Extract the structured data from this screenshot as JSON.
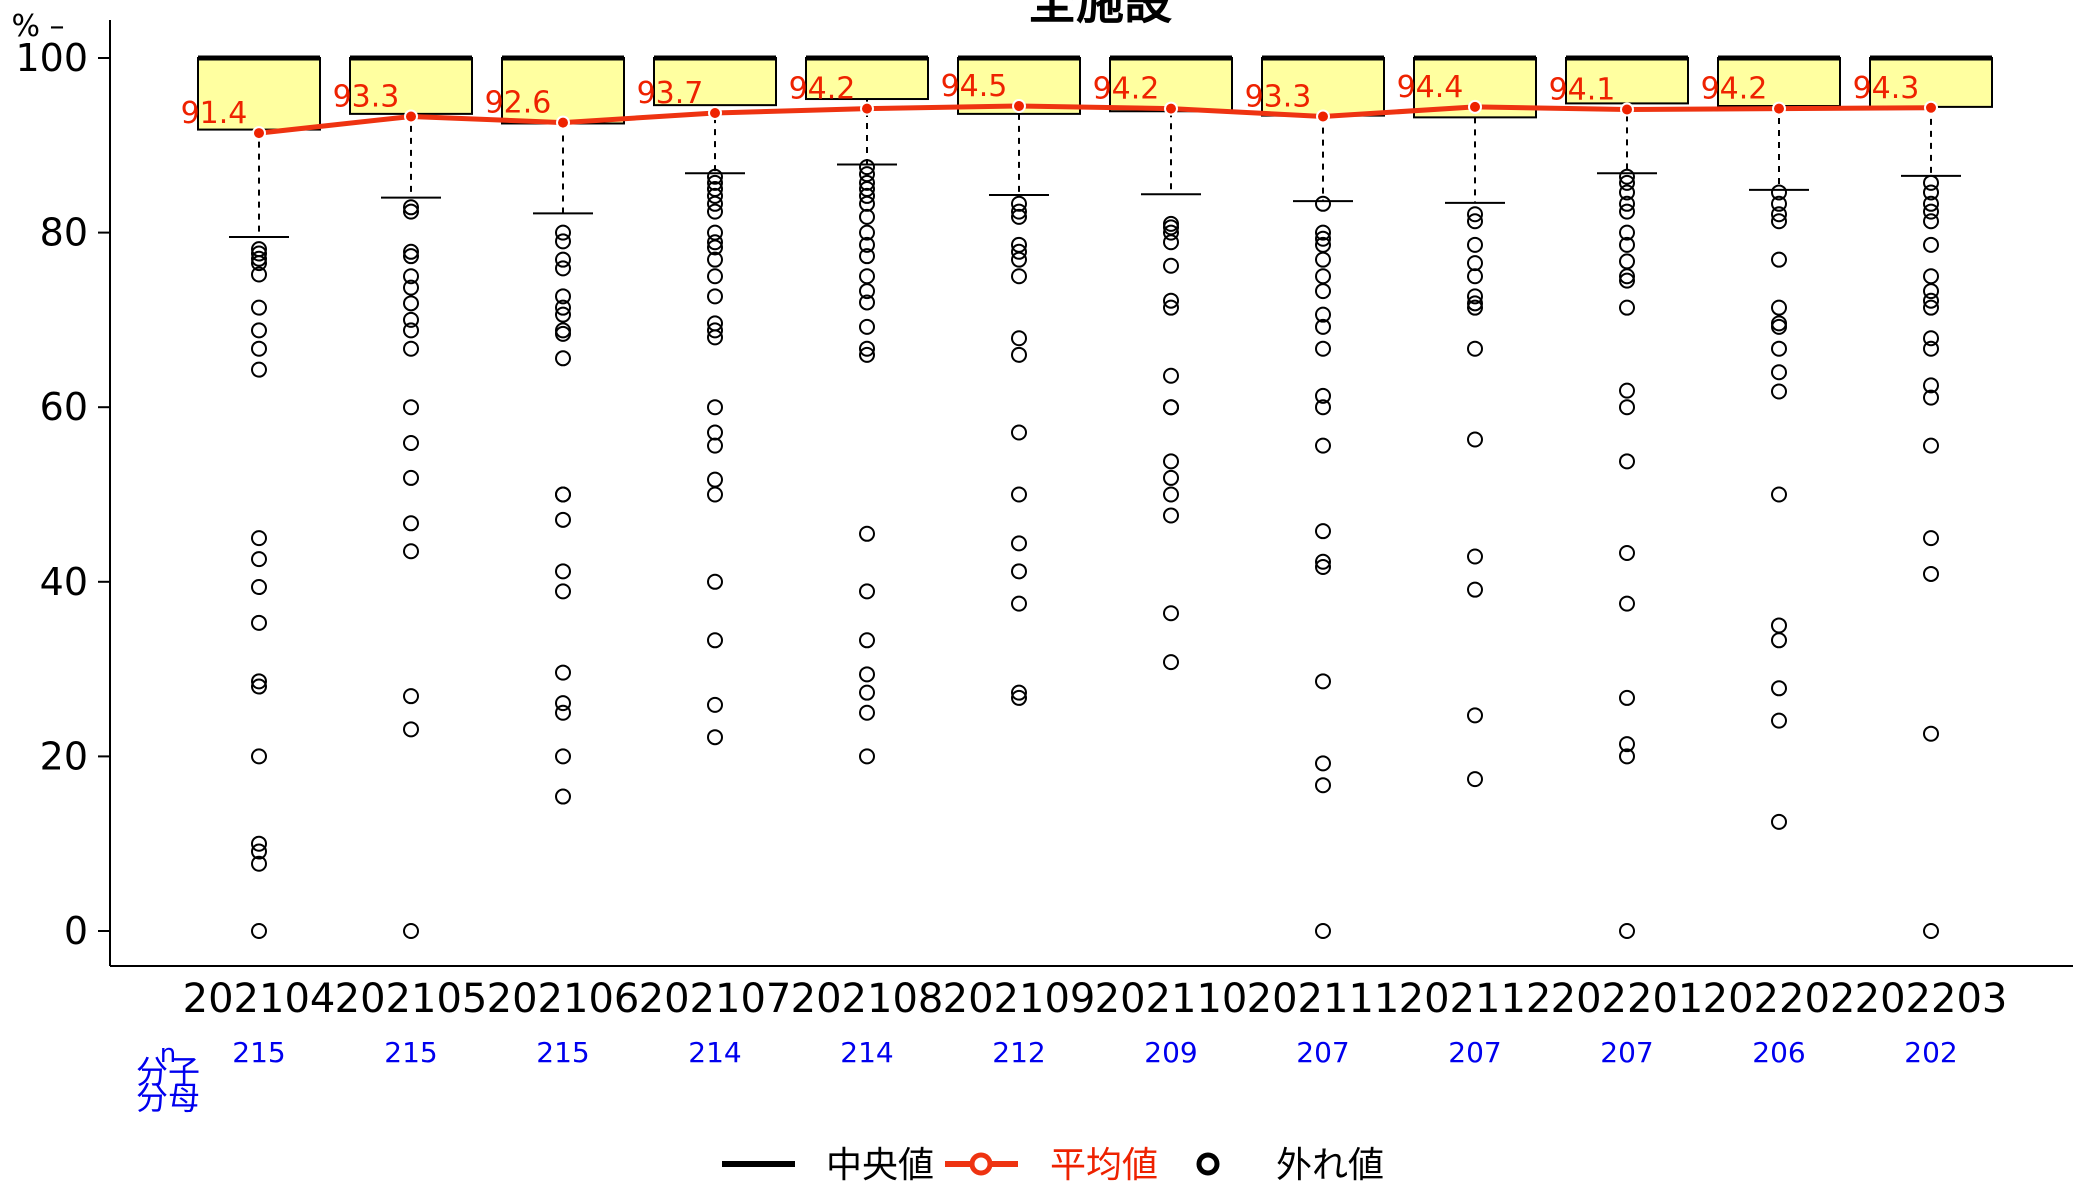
{
  "chart_data": {
    "type": "boxplot",
    "title": "全施設",
    "ylabel": "% –",
    "ylim": [
      0,
      100
    ],
    "yticks": [
      0,
      20,
      40,
      60,
      80,
      100
    ],
    "grid": false,
    "categories": [
      "202104",
      "202105",
      "202106",
      "202107",
      "202108",
      "202109",
      "202110",
      "202111",
      "202112",
      "202201",
      "202202",
      "202203"
    ],
    "n": [
      "215",
      "215",
      "215",
      "214",
      "214",
      "212",
      "209",
      "207",
      "207",
      "207",
      "206",
      "202"
    ],
    "n_side_label": {
      "n": "n",
      "numerator": "分子",
      "denominator": "分母"
    },
    "mean": [
      91.4,
      93.3,
      92.6,
      93.7,
      94.2,
      94.5,
      94.2,
      93.3,
      94.4,
      94.1,
      94.2,
      94.3
    ],
    "mean_labels": [
      "91.4",
      "93.3",
      "92.6",
      "93.7",
      "94.2",
      "94.5",
      "94.2",
      "93.3",
      "94.4",
      "94.1",
      "94.2",
      "94.3"
    ],
    "median": [
      100,
      100,
      100,
      100,
      100,
      100,
      100,
      100,
      100,
      100,
      100,
      100
    ],
    "q1": [
      91.8,
      93.6,
      92.5,
      94.6,
      95.3,
      93.6,
      93.9,
      93.4,
      93.2,
      94.8,
      94.5,
      94.4
    ],
    "q3": [
      100,
      100,
      100,
      100,
      100,
      100,
      100,
      100,
      100,
      100,
      100,
      100
    ],
    "whisker_low": [
      79.5,
      84.0,
      82.2,
      86.8,
      87.8,
      84.3,
      84.4,
      83.6,
      83.4,
      86.8,
      84.9,
      86.5
    ],
    "whisker_high": [
      100,
      100,
      100,
      100,
      100,
      100,
      100,
      100,
      100,
      100,
      100,
      100
    ],
    "outliers": [
      [
        78.1,
        77.6,
        77.0,
        76.5,
        75.2,
        71.4,
        68.8,
        66.7,
        64.3,
        45.0,
        42.6,
        39.4,
        35.3,
        28.6,
        28.0,
        20.0,
        10.0,
        9.1,
        7.7,
        0
      ],
      [
        82.9,
        82.4,
        77.8,
        77.3,
        75.0,
        73.7,
        71.9,
        70.0,
        68.8,
        66.7,
        60.0,
        55.9,
        51.9,
        46.7,
        43.5,
        26.9,
        23.1,
        0
      ],
      [
        80.0,
        79.0,
        76.9,
        75.9,
        72.7,
        71.4,
        70.6,
        68.8,
        68.4,
        65.6,
        50.0,
        50.0,
        47.1,
        41.2,
        38.9,
        29.6,
        26.1,
        25.0,
        20.0,
        15.4
      ],
      [
        86.4,
        85.7,
        85.0,
        84.2,
        83.3,
        82.4,
        80.0,
        78.9,
        78.3,
        76.9,
        75.0,
        72.7,
        69.6,
        68.8,
        68.0,
        60.0,
        57.1,
        55.6,
        51.7,
        50.0,
        40.0,
        33.3,
        25.9,
        22.2
      ],
      [
        87.5,
        86.7,
        85.7,
        85.0,
        84.2,
        83.3,
        81.8,
        80.0,
        78.6,
        77.3,
        75.0,
        73.3,
        72.0,
        69.2,
        66.7,
        66.0,
        45.5,
        38.9,
        33.3,
        29.4,
        27.3,
        25.0,
        20.0
      ],
      [
        83.3,
        82.4,
        81.8,
        78.6,
        77.8,
        76.9,
        75.0,
        67.9,
        66.0,
        57.1,
        50.0,
        44.4,
        41.2,
        37.5,
        27.3,
        26.7
      ],
      [
        81.0,
        80.6,
        80.0,
        78.9,
        76.2,
        72.2,
        71.4,
        63.6,
        60.0,
        60.0,
        53.8,
        51.9,
        50.0,
        47.6,
        36.4,
        30.8
      ],
      [
        83.3,
        80.0,
        79.3,
        78.6,
        76.9,
        75.0,
        73.3,
        70.6,
        69.2,
        66.7,
        61.3,
        60.0,
        55.6,
        45.8,
        42.3,
        41.7,
        28.6,
        19.2,
        16.7,
        0
      ],
      [
        82.1,
        81.3,
        78.6,
        76.5,
        75.0,
        72.7,
        71.9,
        71.4,
        66.7,
        56.3,
        42.9,
        39.1,
        24.7,
        17.4
      ],
      [
        86.4,
        85.7,
        84.6,
        83.3,
        82.4,
        80.0,
        78.6,
        76.7,
        75.0,
        74.5,
        71.4,
        61.9,
        60.0,
        53.8,
        43.3,
        37.5,
        26.7,
        21.4,
        20.0,
        0
      ],
      [
        84.6,
        83.3,
        82.1,
        81.3,
        76.9,
        71.4,
        69.6,
        69.2,
        66.7,
        64.0,
        61.8,
        50.0,
        35.0,
        33.3,
        27.8,
        24.1,
        12.5
      ],
      [
        85.7,
        84.6,
        83.3,
        82.4,
        81.3,
        78.6,
        75.0,
        73.3,
        72.2,
        71.4,
        67.9,
        66.7,
        62.5,
        61.1,
        55.6,
        45.0,
        40.9,
        22.6,
        0
      ]
    ],
    "legend": {
      "median": "中央値",
      "mean": "平均値",
      "outlier": "外れ値",
      "placement": "bottom-center"
    },
    "colors": {
      "box_fill": "#ffffa0",
      "mean_line": "#ee3311",
      "mean_point_fill": "#ee2200",
      "n_text": "#0000ee",
      "outlier_stroke": "#000000"
    }
  }
}
